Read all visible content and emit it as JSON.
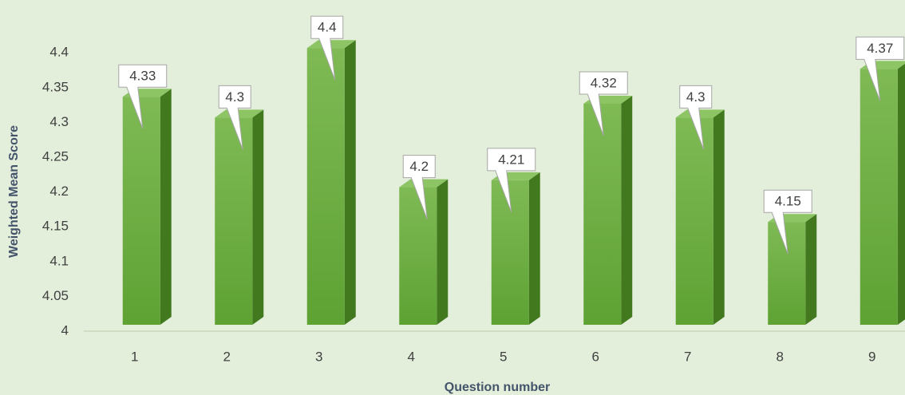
{
  "chart_data": {
    "type": "bar3d",
    "x_label": "Question number",
    "y_label": "Weighted Mean Score",
    "categories": [
      "1",
      "2",
      "3",
      "4",
      "5",
      "6",
      "7",
      "8",
      "9"
    ],
    "values": [
      4.33,
      4.3,
      4.4,
      4.2,
      4.21,
      4.32,
      4.3,
      4.15,
      4.37
    ],
    "color": "#6aab3c",
    "ylim": [
      4,
      4.45
    ],
    "yticks": [
      4,
      4.05,
      4.1,
      4.15,
      4.2,
      4.25,
      4.3,
      4.35,
      4.4,
      4.45
    ],
    "grid": false
  }
}
